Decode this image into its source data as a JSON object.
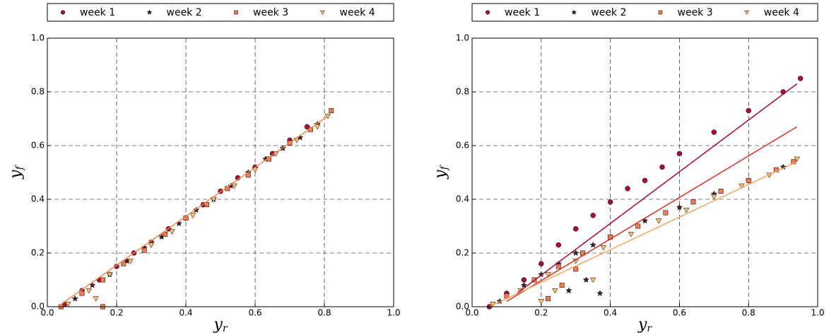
{
  "chart_data": [
    {
      "type": "scatter",
      "xlabel": "y",
      "xlabel_subscript": "r",
      "ylabel": "y",
      "ylabel_subscript": "f",
      "xlim": [
        0,
        1
      ],
      "ylim": [
        0,
        1
      ],
      "grid": true,
      "xticks": [
        {
          "value": 0,
          "label": "0.0"
        },
        {
          "value": 0.2,
          "label": "0.2"
        },
        {
          "value": 0.4,
          "label": "0.4"
        },
        {
          "value": 0.6,
          "label": "0.6"
        },
        {
          "value": 0.8,
          "label": "0.8"
        },
        {
          "value": 1,
          "label": "1.0"
        }
      ],
      "yticks": [
        {
          "value": 0,
          "label": "0.0"
        },
        {
          "value": 0.2,
          "label": "0.2"
        },
        {
          "value": 0.4,
          "label": "0.4"
        },
        {
          "value": 0.6,
          "label": "0.6"
        },
        {
          "value": 0.8,
          "label": "0.8"
        },
        {
          "value": 1,
          "label": "1.0"
        }
      ],
      "series": [
        {
          "name": "week 1",
          "color": "#a50f3a",
          "marker": "circle",
          "x": [
            0.05,
            0.1,
            0.15,
            0.2,
            0.25,
            0.3,
            0.35,
            0.4,
            0.45,
            0.5,
            0.55,
            0.6,
            0.65,
            0.7,
            0.75
          ],
          "values": [
            0.01,
            0.06,
            0.1,
            0.15,
            0.2,
            0.24,
            0.29,
            0.33,
            0.38,
            0.43,
            0.48,
            0.52,
            0.57,
            0.62,
            0.67
          ]
        },
        {
          "name": "week 2",
          "color": "#4a1d2a",
          "marker": "star",
          "x": [
            0.08,
            0.13,
            0.18,
            0.23,
            0.28,
            0.33,
            0.38,
            0.43,
            0.48,
            0.53,
            0.58,
            0.63,
            0.68,
            0.73,
            0.78
          ],
          "values": [
            0.03,
            0.08,
            0.12,
            0.17,
            0.22,
            0.26,
            0.31,
            0.36,
            0.4,
            0.45,
            0.5,
            0.55,
            0.59,
            0.63,
            0.68
          ]
        },
        {
          "name": "week 3",
          "color": "#ee7b51",
          "marker": "square",
          "x": [
            0.04,
            0.1,
            0.16,
            0.22,
            0.28,
            0.34,
            0.4,
            0.46,
            0.52,
            0.58,
            0.64,
            0.7,
            0.76,
            0.82,
            0.16
          ],
          "values": [
            0,
            0.05,
            0.1,
            0.16,
            0.21,
            0.27,
            0.33,
            0.38,
            0.44,
            0.49,
            0.55,
            0.61,
            0.66,
            0.73,
            0
          ]
        },
        {
          "name": "week 4",
          "color": "#fbbf74",
          "marker": "triangle",
          "x": [
            0.06,
            0.12,
            0.18,
            0.24,
            0.3,
            0.36,
            0.42,
            0.48,
            0.54,
            0.6,
            0.66,
            0.72,
            0.78,
            0.81,
            0.14
          ],
          "values": [
            0.01,
            0.06,
            0.12,
            0.17,
            0.23,
            0.28,
            0.34,
            0.4,
            0.45,
            0.51,
            0.57,
            0.62,
            0.67,
            0.71,
            0.03
          ]
        }
      ],
      "lines": [
        {
          "color": "#f08a50",
          "x": [
            0.03,
            0.81
          ],
          "values": [
            0,
            0.71
          ]
        }
      ]
    },
    {
      "type": "scatter",
      "xlabel": "y",
      "xlabel_subscript": "r",
      "ylabel": "y",
      "ylabel_subscript": "f",
      "xlim": [
        0,
        1
      ],
      "ylim": [
        0,
        1
      ],
      "grid": true,
      "xticks": [
        {
          "value": 0,
          "label": "0.0"
        },
        {
          "value": 0.2,
          "label": "0.2"
        },
        {
          "value": 0.4,
          "label": "0.4"
        },
        {
          "value": 0.6,
          "label": "0.6"
        },
        {
          "value": 0.8,
          "label": "0.8"
        },
        {
          "value": 1,
          "label": "1.0"
        }
      ],
      "yticks": [
        {
          "value": 0,
          "label": "0.0"
        },
        {
          "value": 0.2,
          "label": "0.2"
        },
        {
          "value": 0.4,
          "label": "0.4"
        },
        {
          "value": 0.6,
          "label": "0.6"
        },
        {
          "value": 0.8,
          "label": "0.8"
        },
        {
          "value": 1,
          "label": "1.0"
        }
      ],
      "series": [
        {
          "name": "week 1",
          "color": "#a50f3a",
          "marker": "circle",
          "x": [
            0.05,
            0.1,
            0.15,
            0.2,
            0.25,
            0.3,
            0.35,
            0.4,
            0.45,
            0.5,
            0.55,
            0.6,
            0.7,
            0.8,
            0.9,
            0.95
          ],
          "values": [
            0,
            0.05,
            0.1,
            0.16,
            0.23,
            0.29,
            0.34,
            0.39,
            0.44,
            0.47,
            0.52,
            0.57,
            0.65,
            0.73,
            0.8,
            0.85
          ]
        },
        {
          "name": "week 2",
          "color": "#4a1d2a",
          "marker": "star",
          "x": [
            0.08,
            0.15,
            0.2,
            0.25,
            0.3,
            0.35,
            0.4,
            0.5,
            0.6,
            0.7,
            0.8,
            0.9,
            0.28,
            0.33,
            0.37
          ],
          "values": [
            0.02,
            0.08,
            0.12,
            0.16,
            0.2,
            0.23,
            0.26,
            0.32,
            0.37,
            0.42,
            0.47,
            0.52,
            0.06,
            0.1,
            0.05
          ]
        },
        {
          "name": "week 3",
          "color": "#ee7b51",
          "marker": "square",
          "x": [
            0.1,
            0.18,
            0.25,
            0.32,
            0.4,
            0.48,
            0.56,
            0.64,
            0.72,
            0.8,
            0.88,
            0.93,
            0.22,
            0.3,
            0.26
          ],
          "values": [
            0.04,
            0.1,
            0.15,
            0.2,
            0.26,
            0.3,
            0.35,
            0.39,
            0.43,
            0.47,
            0.51,
            0.54,
            0.03,
            0.14,
            0.08
          ]
        },
        {
          "name": "week 4",
          "color": "#fbbf74",
          "marker": "triangle",
          "x": [
            0.06,
            0.14,
            0.22,
            0.3,
            0.38,
            0.46,
            0.54,
            0.62,
            0.7,
            0.78,
            0.86,
            0.94,
            0.2,
            0.35,
            0.24
          ],
          "values": [
            0.01,
            0.06,
            0.12,
            0.17,
            0.22,
            0.27,
            0.32,
            0.36,
            0.41,
            0.45,
            0.49,
            0.55,
            0.02,
            0.1,
            0.06
          ]
        }
      ],
      "lines": [
        {
          "color": "#9e0a33",
          "x": [
            0.13,
            0.94
          ],
          "values": [
            0.05,
            0.83
          ]
        },
        {
          "color": "#d7301f",
          "x": [
            0.1,
            0.94
          ],
          "values": [
            0.02,
            0.67
          ]
        },
        {
          "color": "#f5a55a",
          "x": [
            0.05,
            0.94
          ],
          "values": [
            0,
            0.54
          ]
        }
      ]
    }
  ]
}
